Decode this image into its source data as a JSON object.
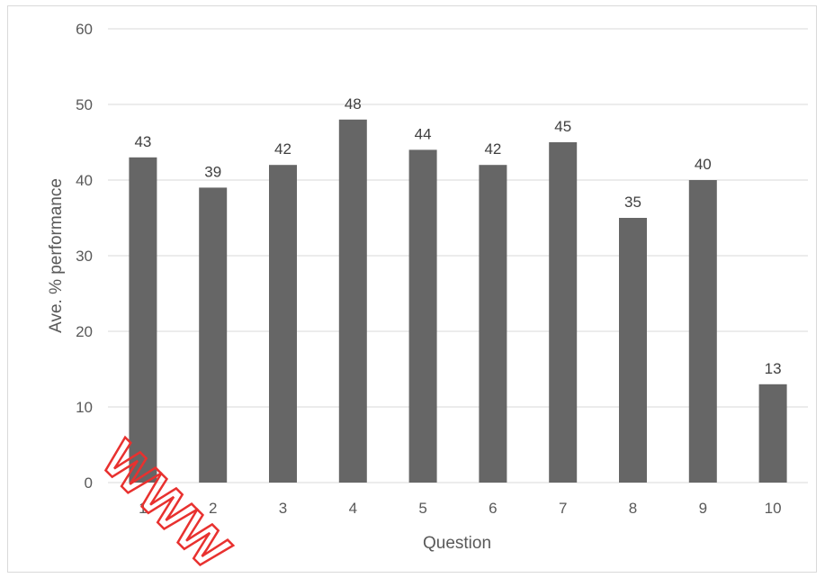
{
  "chart_data": {
    "type": "bar",
    "title": "",
    "xlabel": "Question",
    "ylabel": "Ave. % performance",
    "categories": [
      "1",
      "2",
      "3",
      "4",
      "5",
      "6",
      "7",
      "8",
      "9",
      "10"
    ],
    "values": [
      43,
      39,
      42,
      48,
      44,
      42,
      45,
      35,
      40,
      13
    ],
    "data_labels": [
      "43",
      "39",
      "42",
      "48",
      "44",
      "42",
      "45",
      "35",
      "40",
      "13"
    ],
    "ylim": [
      0,
      60
    ],
    "yticks": [
      0,
      10,
      20,
      30,
      40,
      50,
      60
    ],
    "ytick_labels": [
      "0",
      "10",
      "20",
      "30",
      "40",
      "50",
      "60"
    ],
    "grid": true,
    "legend": "none",
    "bar_color": "#666666",
    "grid_color": "#d9d9d9"
  },
  "watermark": {
    "text": "WWW",
    "color": "#e8312f"
  }
}
